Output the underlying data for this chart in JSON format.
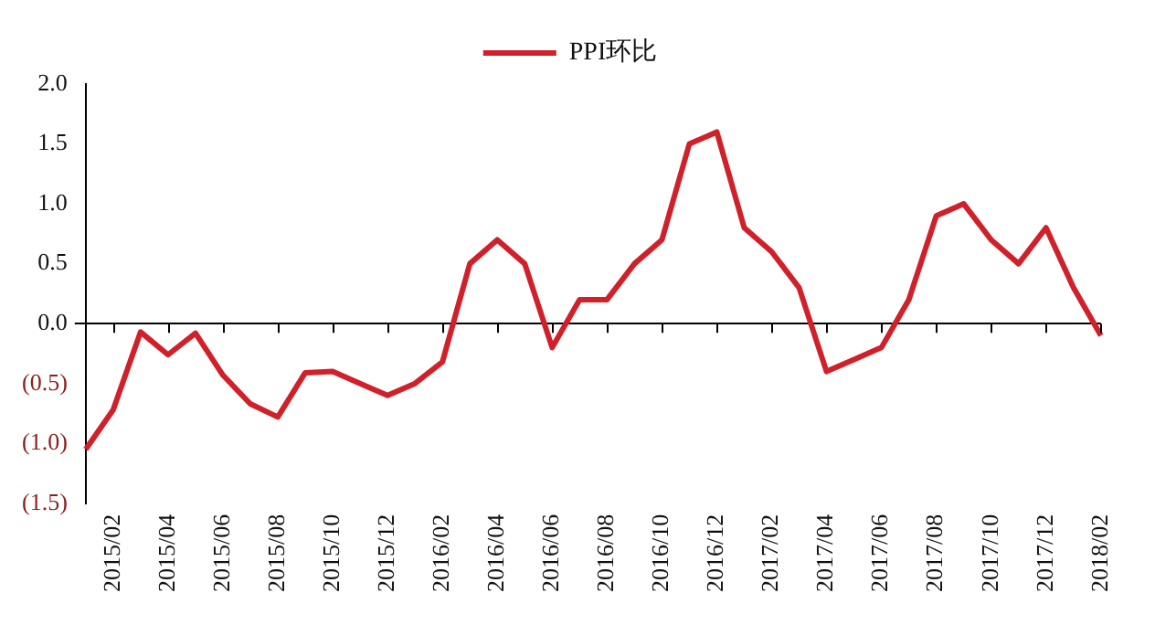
{
  "chart_data": {
    "type": "line",
    "legend": "top",
    "marker": "none",
    "line_style": "solid",
    "categories": [
      null,
      "2015/02",
      null,
      "2015/04",
      null,
      "2015/06",
      null,
      "2015/08",
      null,
      "2015/10",
      null,
      "2015/12",
      null,
      "2016/02",
      null,
      "2016/04",
      null,
      "2016/06",
      null,
      "2016/08",
      null,
      "2016/10",
      null,
      "2016/12",
      null,
      "2017/02",
      null,
      "2017/04",
      null,
      "2017/06",
      null,
      "2017/08",
      null,
      "2017/10",
      null,
      "2017/12",
      null,
      "2018/02"
    ],
    "series": [
      {
        "name": "PPI环比",
        "color": "#d0202a",
        "values": [
          -1.05,
          -0.72,
          -0.07,
          -0.26,
          -0.08,
          -0.43,
          -0.67,
          -0.78,
          -0.41,
          -0.4,
          -0.5,
          -0.6,
          -0.5,
          -0.32,
          0.5,
          0.7,
          0.5,
          -0.2,
          0.2,
          0.2,
          0.5,
          0.7,
          1.5,
          1.6,
          0.8,
          0.6,
          0.3,
          -0.4,
          -0.3,
          -0.2,
          0.2,
          0.9,
          1.0,
          0.7,
          0.5,
          0.8,
          0.3,
          -0.1
        ]
      }
    ],
    "ylim": [
      -1.5,
      2.0
    ],
    "yticks": [
      {
        "value": -1.5,
        "label": "(1.5)"
      },
      {
        "value": -1.0,
        "label": "(1.0)"
      },
      {
        "value": -0.5,
        "label": "(0.5)"
      },
      "0.0",
      0.5,
      "1.0",
      1.5,
      "2.0"
    ]
  }
}
